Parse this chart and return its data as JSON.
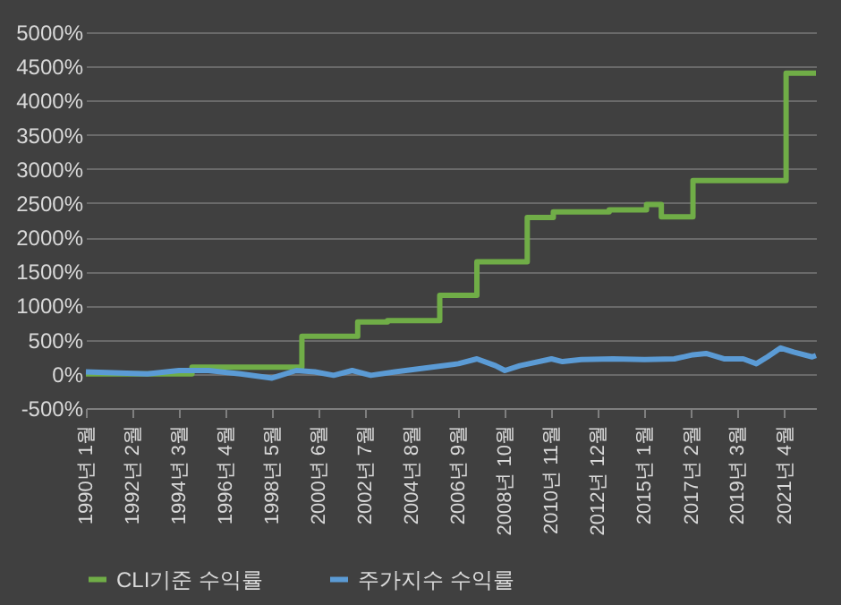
{
  "chart_data": {
    "type": "line",
    "x": [
      "1990-01",
      "1994-10",
      "1999-09",
      "2002-03",
      "2003-07",
      "2005-11",
      "2007-07",
      "2009-10",
      "2010-12",
      "2013-06",
      "2015-02",
      "2015-10",
      "2017-03",
      "2021-05",
      "2022-09"
    ],
    "series": [
      {
        "name": "CLI기준 수익률",
        "color": "#70ad47",
        "type": "step",
        "values": [
          0,
          100,
          550,
          760,
          780,
          1150,
          1640,
          2290,
          2370,
          2400,
          2480,
          2300,
          2830,
          4400,
          4400
        ]
      },
      {
        "name": "주가지수 수익률",
        "color": "#5b9bd5",
        "type": "line",
        "x": [
          "1990-01",
          "1992-10",
          "1994-03",
          "1995-07",
          "1996-12",
          "1998-05",
          "1999-06",
          "2000-04",
          "2001-02",
          "2001-12",
          "2002-10",
          "2003-11",
          "2005-04",
          "2006-09",
          "2007-07",
          "2008-05",
          "2008-10",
          "2009-06",
          "2010-11",
          "2011-05",
          "2012-03",
          "2013-08",
          "2015-01",
          "2016-05",
          "2017-03",
          "2017-10",
          "2018-08",
          "2019-06",
          "2020-01",
          "2020-07",
          "2021-02",
          "2021-09",
          "2022-07",
          "2022-09"
        ],
        "values": [
          30,
          0,
          50,
          50,
          0,
          -60,
          50,
          30,
          -20,
          50,
          -20,
          30,
          90,
          150,
          220,
          120,
          50,
          120,
          220,
          180,
          210,
          220,
          210,
          220,
          280,
          300,
          220,
          220,
          150,
          250,
          380,
          320,
          250,
          270
        ]
      }
    ],
    "xlim": [
      "1990-01",
      "2022-09"
    ],
    "xticks": [
      {
        "value": "1990-01",
        "label": "1990년 1월"
      },
      {
        "value": "1992-02",
        "label": "1992년 2월"
      },
      {
        "value": "1994-03",
        "label": "1994년 3월"
      },
      {
        "value": "1996-04",
        "label": "1996년 4월"
      },
      {
        "value": "1998-05",
        "label": "1998년 5월"
      },
      {
        "value": "2000-06",
        "label": "2000년 6월"
      },
      {
        "value": "2002-07",
        "label": "2002년 7월"
      },
      {
        "value": "2004-08",
        "label": "2004년 8월"
      },
      {
        "value": "2006-09",
        "label": "2006년 9월"
      },
      {
        "value": "2008-10",
        "label": "2008년 10월"
      },
      {
        "value": "2010-11",
        "label": "2010년 11월"
      },
      {
        "value": "2012-12",
        "label": "2012년 12월"
      },
      {
        "value": "2015-01",
        "label": "2015년 1월"
      },
      {
        "value": "2017-02",
        "label": "2017년 2월"
      },
      {
        "value": "2019-03",
        "label": "2019년 3월"
      },
      {
        "value": "2021-04",
        "label": "2021년 4월"
      }
    ],
    "ylim": [
      -500,
      5000
    ],
    "yticks": [
      {
        "value": -500,
        "label": "-500%"
      },
      {
        "value": 0,
        "label": "0%"
      },
      {
        "value": 500,
        "label": "500%"
      },
      {
        "value": 1000,
        "label": "1000%"
      },
      {
        "value": 1500,
        "label": "1500%"
      },
      {
        "value": 2000,
        "label": "2000%"
      },
      {
        "value": 2500,
        "label": "2500%"
      },
      {
        "value": 3000,
        "label": "3000%"
      },
      {
        "value": 3500,
        "label": "3500%"
      },
      {
        "value": 4000,
        "label": "4000%"
      },
      {
        "value": 4500,
        "label": "4500%"
      },
      {
        "value": 5000,
        "label": "5000%"
      }
    ],
    "grid": "y",
    "legend": "bottom",
    "marker": "none",
    "line_style": "solid"
  }
}
